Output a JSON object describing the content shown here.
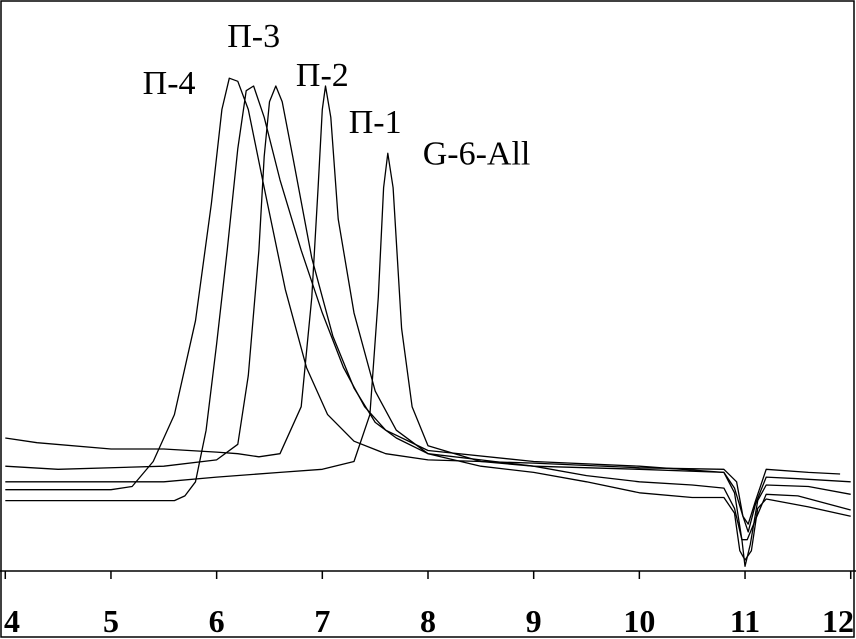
{
  "chart_data": {
    "type": "line",
    "title": "",
    "xlabel": "",
    "ylabel": "",
    "xlim": [
      3.95,
      12.05
    ],
    "ylim": [
      -0.45,
      3.2
    ],
    "x_ticks": [
      4,
      5,
      6,
      7,
      8,
      9,
      10,
      11,
      12
    ],
    "tick_labels": [
      "4",
      "5",
      "6",
      "7",
      "8",
      "9",
      "10",
      "11",
      "12"
    ],
    "grid": false,
    "line_color": "#000000",
    "series": [
      {
        "name": "П-4",
        "label_position": [
          5.3,
          2.6
        ],
        "points": [
          [
            4.0,
            0.07
          ],
          [
            5.0,
            0.07
          ],
          [
            5.2,
            0.09
          ],
          [
            5.4,
            0.25
          ],
          [
            5.6,
            0.55
          ],
          [
            5.8,
            1.15
          ],
          [
            5.95,
            1.9
          ],
          [
            6.05,
            2.5
          ],
          [
            6.12,
            2.7
          ],
          [
            6.2,
            2.68
          ],
          [
            6.3,
            2.5
          ],
          [
            6.45,
            2.0
          ],
          [
            6.65,
            1.35
          ],
          [
            6.85,
            0.85
          ],
          [
            7.05,
            0.55
          ],
          [
            7.3,
            0.38
          ],
          [
            7.6,
            0.3
          ],
          [
            8.0,
            0.26
          ],
          [
            9.0,
            0.24
          ],
          [
            10.0,
            0.21
          ],
          [
            10.8,
            0.2
          ],
          [
            10.92,
            0.12
          ],
          [
            10.98,
            -0.1
          ],
          [
            11.03,
            -0.2
          ],
          [
            11.1,
            -0.02
          ],
          [
            11.2,
            0.15
          ],
          [
            11.5,
            0.14
          ],
          [
            12.0,
            0.12
          ]
        ]
      },
      {
        "name": "П-3",
        "label_position": [
          6.1,
          2.9
        ],
        "points": [
          [
            4.0,
            0.0
          ],
          [
            5.6,
            0.0
          ],
          [
            5.7,
            0.03
          ],
          [
            5.8,
            0.12
          ],
          [
            5.9,
            0.45
          ],
          [
            6.0,
            1.0
          ],
          [
            6.1,
            1.6
          ],
          [
            6.2,
            2.25
          ],
          [
            6.28,
            2.62
          ],
          [
            6.35,
            2.65
          ],
          [
            6.45,
            2.45
          ],
          [
            6.6,
            2.05
          ],
          [
            6.8,
            1.6
          ],
          [
            7.0,
            1.2
          ],
          [
            7.2,
            0.85
          ],
          [
            7.4,
            0.6
          ],
          [
            7.6,
            0.45
          ],
          [
            8.0,
            0.32
          ],
          [
            9.0,
            0.25
          ],
          [
            10.0,
            0.22
          ],
          [
            10.8,
            0.18
          ],
          [
            10.9,
            0.05
          ],
          [
            10.97,
            -0.25
          ],
          [
            11.0,
            -0.42
          ],
          [
            11.05,
            -0.28
          ],
          [
            11.12,
            0.0
          ],
          [
            11.2,
            0.1
          ],
          [
            11.6,
            0.09
          ],
          [
            12.0,
            0.04
          ]
        ]
      },
      {
        "name": "П-2",
        "label_position": [
          6.75,
          2.65
        ],
        "points": [
          [
            4.0,
            0.22
          ],
          [
            4.5,
            0.2
          ],
          [
            5.5,
            0.22
          ],
          [
            6.0,
            0.26
          ],
          [
            6.2,
            0.36
          ],
          [
            6.3,
            0.8
          ],
          [
            6.4,
            1.6
          ],
          [
            6.45,
            2.2
          ],
          [
            6.5,
            2.55
          ],
          [
            6.56,
            2.65
          ],
          [
            6.62,
            2.55
          ],
          [
            6.72,
            2.2
          ],
          [
            6.9,
            1.55
          ],
          [
            7.1,
            1.05
          ],
          [
            7.3,
            0.72
          ],
          [
            7.5,
            0.5
          ],
          [
            7.7,
            0.4
          ],
          [
            8.0,
            0.3
          ],
          [
            8.5,
            0.26
          ],
          [
            9.0,
            0.22
          ],
          [
            9.5,
            0.16
          ],
          [
            10.0,
            0.12
          ],
          [
            10.5,
            0.1
          ],
          [
            10.8,
            0.08
          ],
          [
            10.9,
            -0.05
          ],
          [
            10.97,
            -0.25
          ],
          [
            11.02,
            -0.25
          ],
          [
            11.1,
            -0.12
          ],
          [
            11.2,
            0.04
          ],
          [
            11.5,
            0.03
          ],
          [
            12.0,
            -0.06
          ]
        ]
      },
      {
        "name": "П-1",
        "label_position": [
          7.25,
          2.35
        ],
        "points": [
          [
            4.0,
            0.4
          ],
          [
            4.3,
            0.37
          ],
          [
            5.0,
            0.33
          ],
          [
            5.5,
            0.33
          ],
          [
            6.0,
            0.31
          ],
          [
            6.2,
            0.3
          ],
          [
            6.4,
            0.28
          ],
          [
            6.6,
            0.3
          ],
          [
            6.8,
            0.6
          ],
          [
            6.9,
            1.3
          ],
          [
            6.96,
            2.0
          ],
          [
            7.0,
            2.5
          ],
          [
            7.03,
            2.65
          ],
          [
            7.08,
            2.45
          ],
          [
            7.15,
            1.8
          ],
          [
            7.3,
            1.2
          ],
          [
            7.5,
            0.7
          ],
          [
            7.7,
            0.45
          ],
          [
            8.0,
            0.3
          ],
          [
            8.5,
            0.22
          ],
          [
            9.0,
            0.18
          ],
          [
            9.5,
            0.12
          ],
          [
            10.0,
            0.05
          ],
          [
            10.5,
            0.02
          ],
          [
            10.8,
            0.02
          ],
          [
            10.9,
            -0.08
          ],
          [
            10.95,
            -0.32
          ],
          [
            11.0,
            -0.38
          ],
          [
            11.06,
            -0.32
          ],
          [
            11.12,
            -0.05
          ],
          [
            11.2,
            0.01
          ],
          [
            11.6,
            -0.04
          ],
          [
            12.0,
            -0.1
          ]
        ]
      },
      {
        "name": "G-6-All",
        "label_position": [
          7.95,
          2.15
        ],
        "points": [
          [
            4.0,
            0.12
          ],
          [
            5.5,
            0.12
          ],
          [
            6.0,
            0.15
          ],
          [
            6.6,
            0.18
          ],
          [
            7.0,
            0.2
          ],
          [
            7.3,
            0.25
          ],
          [
            7.45,
            0.55
          ],
          [
            7.53,
            1.3
          ],
          [
            7.58,
            2.0
          ],
          [
            7.62,
            2.22
          ],
          [
            7.67,
            2.0
          ],
          [
            7.75,
            1.1
          ],
          [
            7.85,
            0.6
          ],
          [
            8.0,
            0.35
          ],
          [
            8.5,
            0.25
          ],
          [
            9.0,
            0.22
          ],
          [
            10.0,
            0.2
          ],
          [
            10.8,
            0.18
          ],
          [
            10.9,
            0.08
          ],
          [
            10.98,
            -0.1
          ],
          [
            11.03,
            -0.15
          ],
          [
            11.1,
            0.0
          ],
          [
            11.2,
            0.2
          ],
          [
            11.6,
            0.18
          ],
          [
            11.9,
            0.17
          ]
        ]
      }
    ]
  }
}
